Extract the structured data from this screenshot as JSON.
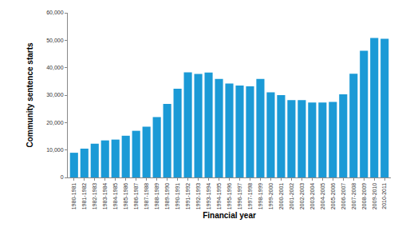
{
  "chart_data": {
    "type": "bar",
    "x_label": "Financial year",
    "y_label": "Community sentence starts",
    "categories": [
      "1980-1981",
      "1981-1982",
      "1982-1983",
      "1983-1984",
      "1984-1985",
      "1985-1986",
      "1986-1987",
      "1987-1988",
      "1988-1989",
      "1989-1990",
      "1990-1991",
      "1991-1992",
      "1992-1993",
      "1993-1994",
      "1994-1995",
      "1995-1996",
      "1996-1997",
      "1997-1998",
      "1998-1999",
      "1999-2000",
      "2000-2001",
      "2001-2002",
      "2002-2003",
      "2003-2004",
      "2004-2005",
      "2005-2006",
      "2006-2007",
      "2007-2008",
      "2008-2009",
      "2009-2010",
      "2010-2011"
    ],
    "values": [
      9000,
      10500,
      12300,
      13500,
      13800,
      15200,
      17000,
      18500,
      22000,
      26800,
      32300,
      38300,
      37700,
      38200,
      35900,
      34200,
      33500,
      33200,
      35900,
      31000,
      30000,
      28200,
      28200,
      27300,
      27300,
      27500,
      30300,
      37800,
      46200,
      50800,
      50500
    ],
    "color": "#1b9ad6",
    "ylim": [
      0,
      60000
    ],
    "yticks": [
      0,
      {
        "value": 10000,
        "label": "10,000"
      },
      {
        "value": 20000,
        "label": "20,000"
      },
      {
        "value": 30000,
        "label": "30,000"
      },
      {
        "value": 40000,
        "label": "40,000"
      },
      {
        "value": 50000,
        "label": "50,000"
      },
      {
        "value": 60000,
        "label": "60,000"
      }
    ],
    "grid": false
  }
}
